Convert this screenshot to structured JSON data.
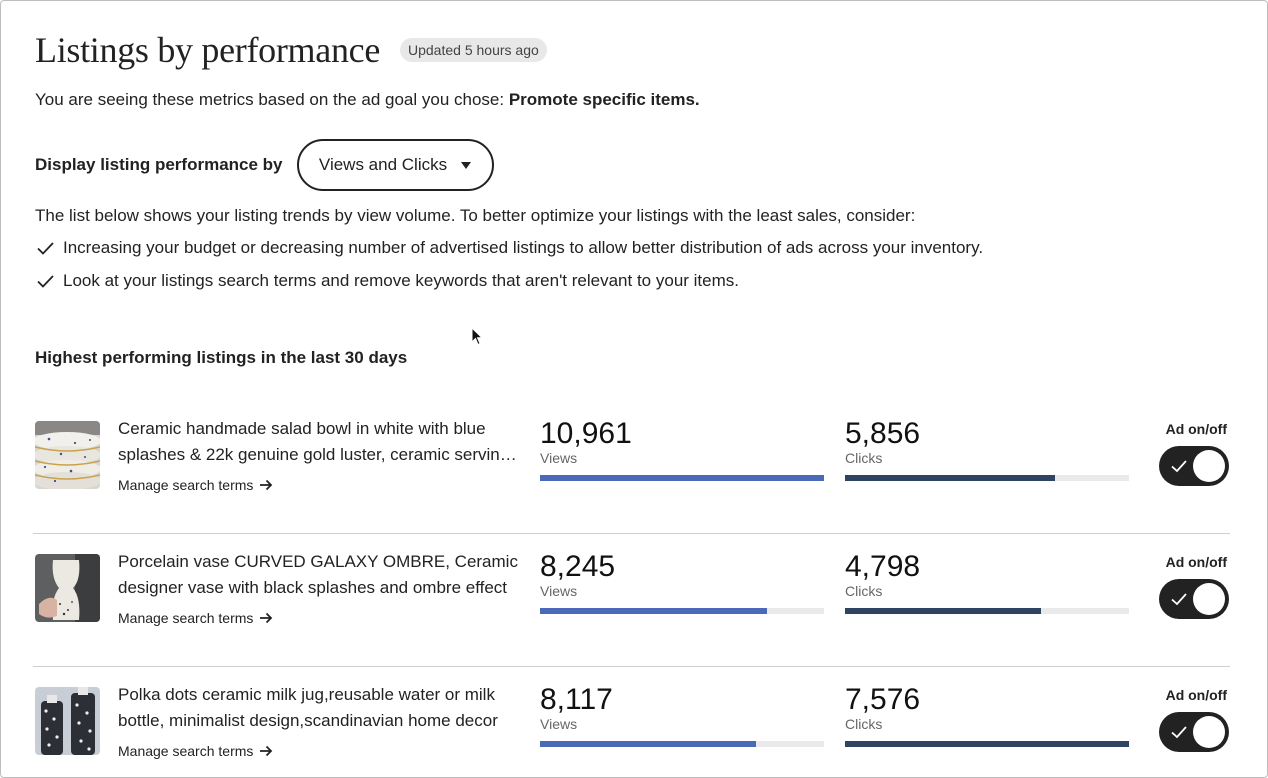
{
  "header": {
    "title": "Listings by performance",
    "updated_badge": "Updated 5 hours ago"
  },
  "goal": {
    "prefix": "You are seeing these metrics based on the ad goal you chose:",
    "value": "Promote specific items."
  },
  "display": {
    "label": "Display listing performance by",
    "selected": "Views and Clicks"
  },
  "trend_intro": "The list below shows your listing trends by view volume. To better optimize your listings with the least sales, consider:",
  "tips": [
    "Increasing your budget or decreasing number of advertised listings to allow better distribution of ads across your inventory.",
    "Look at your listings search terms and remove keywords that aren't relevant to your items."
  ],
  "section_heading": "Highest performing listings in the last 30 days",
  "listings": [
    {
      "title": "Ceramic handmade salad bowl in white with blue splashes & 22k genuine gold luster, ceramic serving bowl",
      "manage_label": "Manage search terms",
      "views": "10,961",
      "views_label": "Views",
      "views_fill": 1.0,
      "clicks": "5,856",
      "clicks_label": "Clicks",
      "clicks_fill": 0.74,
      "ad_label": "Ad on/off",
      "ad_on": true
    },
    {
      "title": "Porcelain vase CURVED GALAXY OMBRE, Ceramic designer vase with black splashes and ombre effect",
      "manage_label": "Manage search terms",
      "views": "8,245",
      "views_label": "Views",
      "views_fill": 0.8,
      "clicks": "4,798",
      "clicks_label": "Clicks",
      "clicks_fill": 0.69,
      "ad_label": "Ad on/off",
      "ad_on": true
    },
    {
      "title": "Polka dots ceramic milk jug,reusable water or milk bottle, minimalist design,scandinavian home decor",
      "manage_label": "Manage search terms",
      "views": "8,117",
      "views_label": "Views",
      "views_fill": 0.76,
      "clicks": "7,576",
      "clicks_label": "Clicks",
      "clicks_fill": 1.0,
      "ad_label": "Ad on/off",
      "ad_on": true
    }
  ],
  "colors": {
    "views_bar": "#4a6ab9",
    "clicks_bar": "#2f4363",
    "toggle_on": "#222222"
  }
}
